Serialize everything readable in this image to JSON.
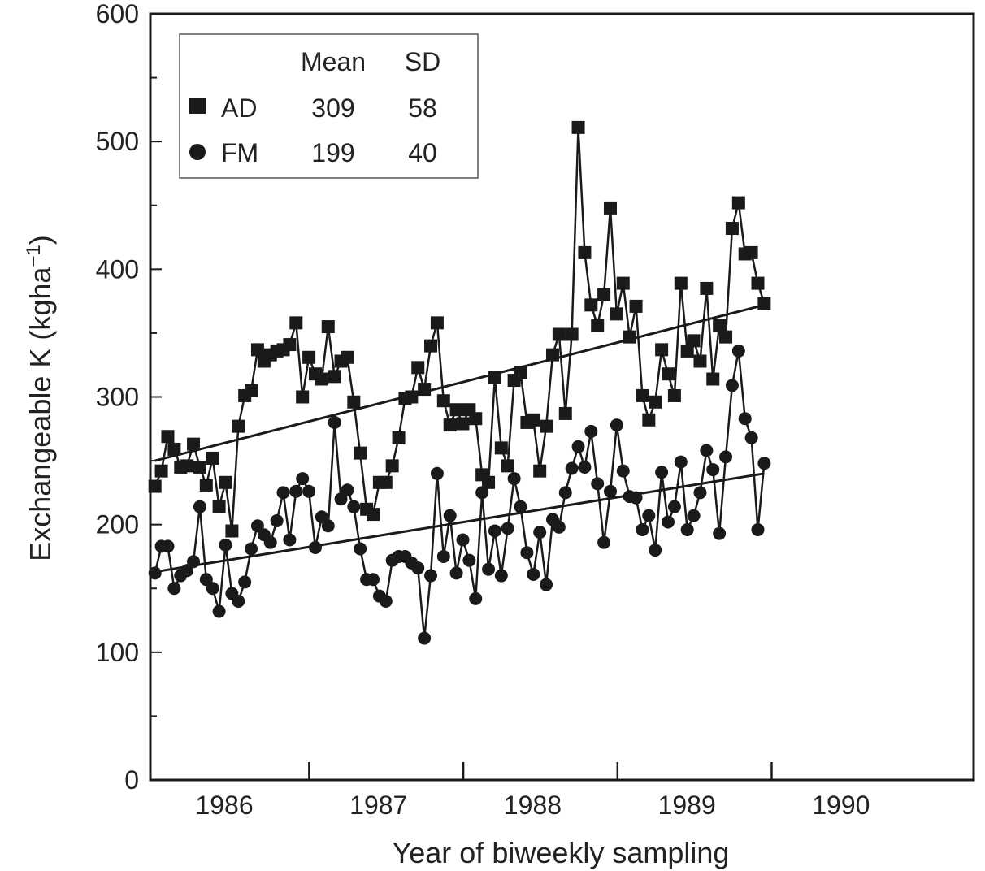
{
  "chart_data": {
    "type": "line",
    "ylabel": "Exchangeable K (kgha",
    "ylabel_sup": "−1",
    "ylabel_close": ")",
    "xlabel": "Year of biweekly sampling",
    "ylim": [
      0,
      600
    ],
    "xlim": [
      1985.72,
      1991.06
    ],
    "yticks": [
      0,
      100,
      200,
      300,
      400,
      500,
      600
    ],
    "xticks": [
      {
        "label": "1986",
        "value": 1986.2
      },
      {
        "label": "1987",
        "value": 1987.2
      },
      {
        "label": "1988",
        "value": 1988.2
      },
      {
        "label": "1989",
        "value": 1989.2
      },
      {
        "label": "1990",
        "value": 1990.2
      }
    ],
    "year_boundaries": [
      1986.75,
      1987.75,
      1988.75,
      1989.75
    ],
    "legend": {
      "header_mean": "Mean",
      "header_sd": "SD",
      "rows": [
        {
          "series": "AD",
          "mean": "309",
          "sd": "58"
        },
        {
          "series": "FM",
          "mean": "199",
          "sd": "40"
        }
      ]
    },
    "series": [
      {
        "name": "AD",
        "marker": "square",
        "color": "#1a1a1a",
        "x_start": 1985.75,
        "x_step": 0.0416,
        "values": [
          230,
          242,
          269,
          259,
          245,
          246,
          263,
          245,
          231,
          252,
          214,
          233,
          195,
          277,
          301,
          305,
          337,
          328,
          333,
          336,
          337,
          341,
          358,
          300,
          331,
          318,
          314,
          355,
          316,
          328,
          331,
          296,
          256,
          212,
          208,
          233,
          233,
          246,
          268,
          299,
          300,
          323,
          306,
          340,
          358,
          297,
          278,
          290,
          279,
          290,
          283,
          239,
          233,
          315,
          260,
          246,
          313,
          319,
          280,
          282,
          242,
          277,
          333,
          349,
          287,
          349,
          511,
          413,
          372,
          356,
          380,
          448,
          365,
          389,
          347,
          371,
          301,
          282,
          296,
          337,
          318,
          301,
          389,
          336,
          344,
          328,
          385,
          314,
          356,
          347,
          432,
          452,
          412,
          413,
          389,
          373
        ],
        "trend": [
          250,
          372
        ]
      },
      {
        "name": "FM",
        "marker": "circle",
        "color": "#1a1a1a",
        "x_start": 1985.75,
        "x_step": 0.0416,
        "values": [
          162,
          183,
          183,
          150,
          160,
          164,
          171,
          214,
          157,
          150,
          132,
          184,
          146,
          140,
          155,
          181,
          199,
          192,
          186,
          203,
          225,
          188,
          226,
          236,
          226,
          182,
          206,
          199,
          280,
          220,
          227,
          214,
          181,
          157,
          157,
          144,
          140,
          172,
          175,
          175,
          170,
          166,
          111,
          160,
          240,
          175,
          207,
          162,
          188,
          172,
          142,
          225,
          165,
          195,
          160,
          197,
          236,
          214,
          178,
          161,
          194,
          153,
          204,
          198,
          225,
          244,
          261,
          245,
          273,
          232,
          186,
          226,
          278,
          242,
          222,
          221,
          196,
          207,
          180,
          241,
          202,
          214,
          249,
          196,
          207,
          225,
          258,
          243,
          193,
          253,
          309,
          336,
          283,
          268,
          196,
          248
        ],
        "trend": [
          163,
          240
        ]
      }
    ]
  }
}
